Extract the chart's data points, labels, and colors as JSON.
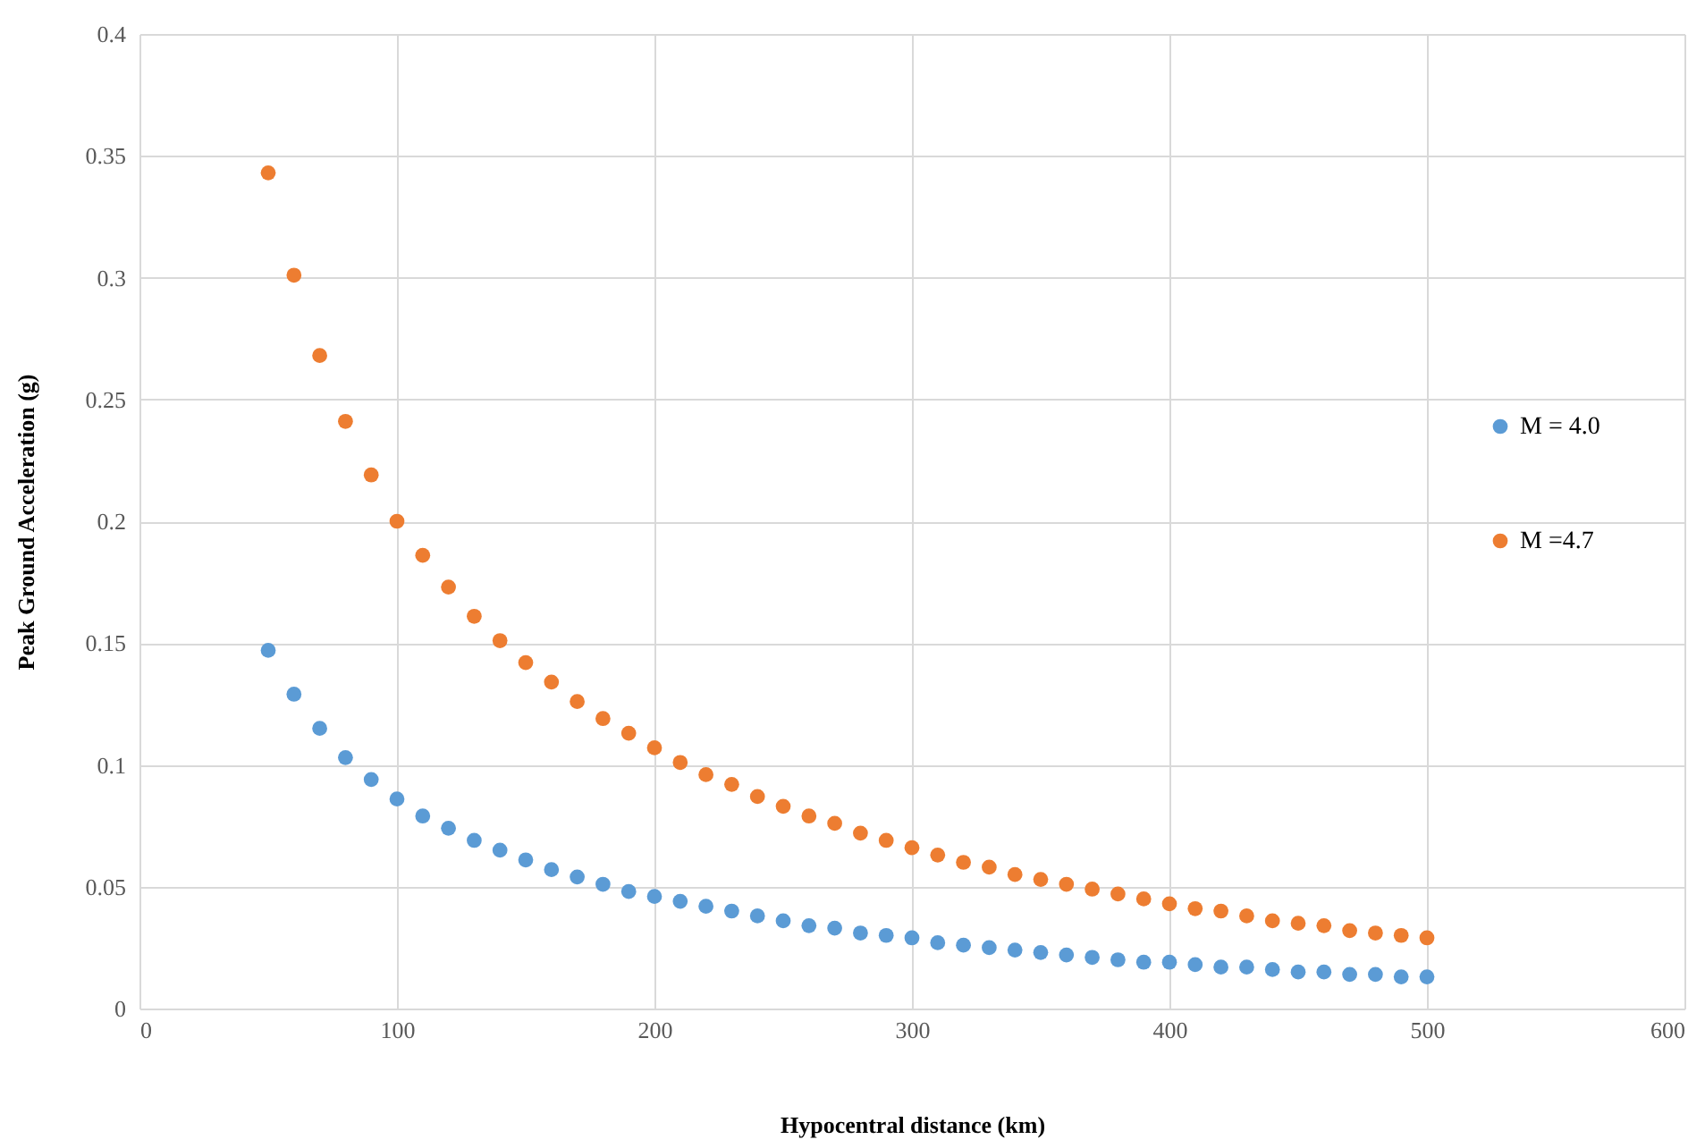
{
  "chart_data": {
    "type": "scatter",
    "xlabel": "Hypocentral distance (km)",
    "ylabel": "Peak Ground Acceleration (g)",
    "x": [
      50,
      60,
      70,
      80,
      90,
      100,
      110,
      120,
      130,
      140,
      150,
      160,
      170,
      180,
      190,
      200,
      210,
      220,
      230,
      240,
      250,
      260,
      270,
      280,
      290,
      300,
      310,
      320,
      330,
      340,
      350,
      360,
      370,
      380,
      390,
      400,
      410,
      420,
      430,
      440,
      450,
      460,
      470,
      480,
      490,
      500
    ],
    "series": [
      {
        "name": "M = 4.0",
        "color": "#5b9bd5",
        "values": [
          0.147,
          0.129,
          0.115,
          0.103,
          0.094,
          0.086,
          0.079,
          0.074,
          0.069,
          0.065,
          0.061,
          0.057,
          0.054,
          0.051,
          0.048,
          0.046,
          0.044,
          0.042,
          0.04,
          0.038,
          0.036,
          0.034,
          0.033,
          0.031,
          0.03,
          0.029,
          0.027,
          0.026,
          0.025,
          0.024,
          0.023,
          0.022,
          0.021,
          0.02,
          0.019,
          0.019,
          0.018,
          0.017,
          0.017,
          0.016,
          0.015,
          0.015,
          0.014,
          0.014,
          0.013,
          0.013
        ]
      },
      {
        "name": "M =4.7",
        "color": "#ed7d31",
        "values": [
          0.343,
          0.301,
          0.268,
          0.241,
          0.219,
          0.2,
          0.186,
          0.173,
          0.161,
          0.151,
          0.142,
          0.134,
          0.126,
          0.119,
          0.113,
          0.107,
          0.101,
          0.096,
          0.092,
          0.087,
          0.083,
          0.079,
          0.076,
          0.072,
          0.069,
          0.066,
          0.063,
          0.06,
          0.058,
          0.055,
          0.053,
          0.051,
          0.049,
          0.047,
          0.045,
          0.043,
          0.041,
          0.04,
          0.038,
          0.036,
          0.035,
          0.034,
          0.032,
          0.031,
          0.03,
          0.029
        ]
      }
    ],
    "xlim": [
      0,
      600
    ],
    "xticks": [
      0,
      100,
      200,
      300,
      400,
      500,
      600
    ],
    "ylim": [
      0,
      0.4
    ],
    "yticks": [
      0,
      0.05,
      0.1,
      0.15,
      0.2,
      0.25,
      0.3,
      0.35,
      0.4
    ],
    "grid": true,
    "legend": "right",
    "marker": "circle"
  }
}
